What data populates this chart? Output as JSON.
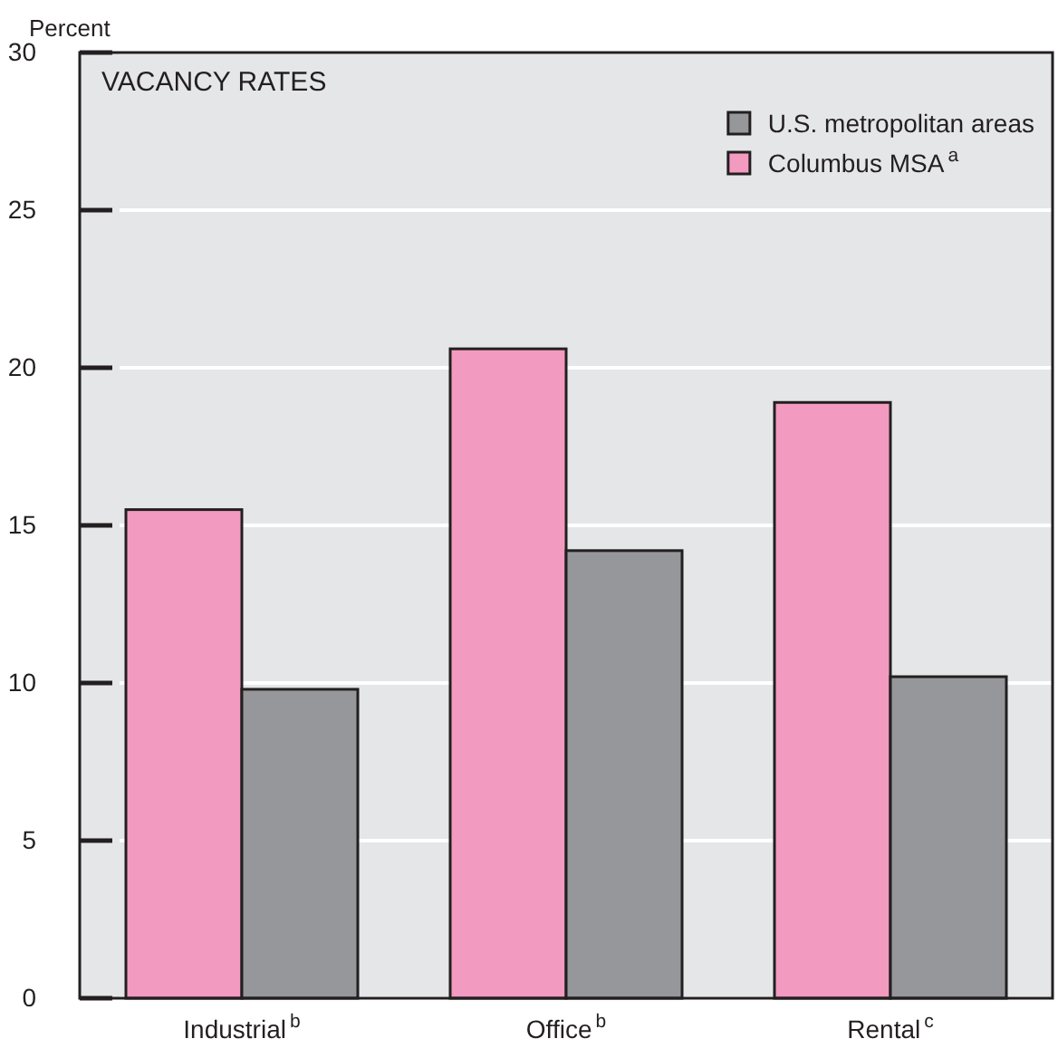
{
  "chart_data": {
    "type": "bar",
    "title": "VACANCY RATES",
    "ylabel": "Percent",
    "categories": [
      "Industrial$^{b}$",
      "Office$^{b}$",
      "Rental$^{c}$"
    ],
    "series": [
      {
        "name": "Columbus MSA$^{a}$",
        "color": "#f39ac1",
        "values": [
          15.5,
          20.6,
          18.9
        ]
      },
      {
        "name": "U.S. metropolitan areas",
        "color": "#96979b",
        "values": [
          9.8,
          14.2,
          10.2
        ]
      }
    ],
    "ylim": [
      0,
      30
    ],
    "yticks": [
      0,
      5,
      10,
      15,
      20,
      25,
      30
    ],
    "grid": "y",
    "legend": "top right"
  }
}
